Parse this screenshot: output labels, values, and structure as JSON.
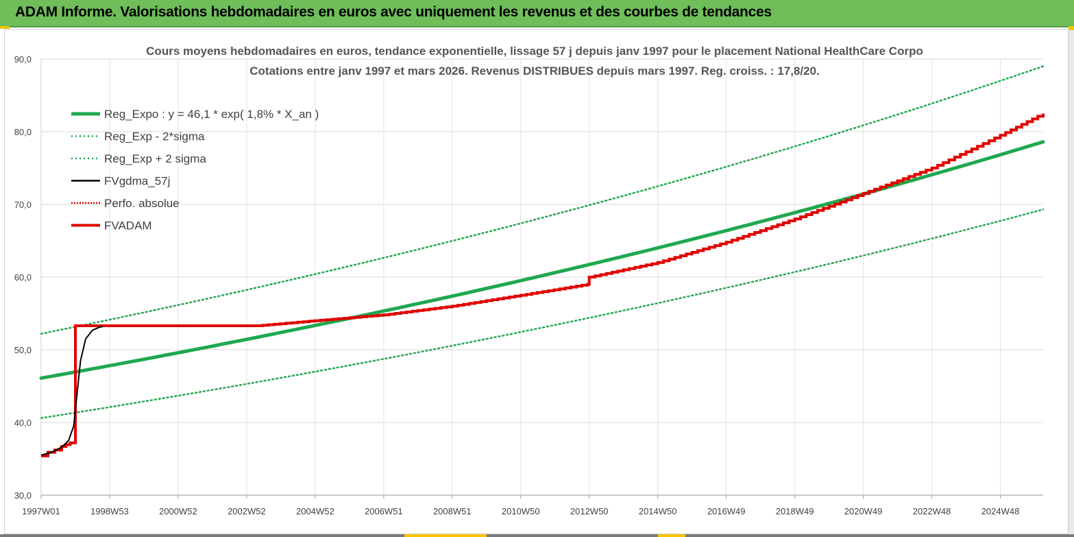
{
  "header": {
    "title": "ADAM Informe. Valorisations hebdomadaires en euros avec uniquement les revenus et des courbes de tendances"
  },
  "colors": {
    "header_bg": "#6fbe5a",
    "trend": "#1fa84f",
    "sigma": "#1fa84f",
    "fvgdma": "#000000",
    "perfo": "#e00000",
    "fvadam": "#e00000"
  },
  "chart_data": {
    "type": "line",
    "title_lines": [
      "Cours moyens hebdomadaires en euros, tendance exponentielle, lissage 57 j depuis janv 1997  pour le placement National HealthCare Corpo",
      "Cotations entre janv 1997 et mars 2026. Revenus DISTRIBUES depuis mars 1997. Reg. croiss. : 17,8/20."
    ],
    "ylim": [
      30,
      90
    ],
    "y_ticks": [
      "30,0",
      "40,0",
      "50,0",
      "60,0",
      "70,0",
      "80,0",
      "90,0"
    ],
    "xlim": [
      1997.0,
      2026.25
    ],
    "x_ticks": [
      {
        "x": 1997.0,
        "label": "1997W01"
      },
      {
        "x": 1999.0,
        "label": "1998W53"
      },
      {
        "x": 2001.0,
        "label": "2000W52"
      },
      {
        "x": 2003.0,
        "label": "2002W52"
      },
      {
        "x": 2005.0,
        "label": "2004W52"
      },
      {
        "x": 2007.0,
        "label": "2006W51"
      },
      {
        "x": 2009.0,
        "label": "2008W51"
      },
      {
        "x": 2011.0,
        "label": "2010W50"
      },
      {
        "x": 2013.0,
        "label": "2012W50"
      },
      {
        "x": 2015.0,
        "label": "2014W50"
      },
      {
        "x": 2017.0,
        "label": "2016W49"
      },
      {
        "x": 2019.0,
        "label": "2018W49"
      },
      {
        "x": 2021.0,
        "label": "2020W49"
      },
      {
        "x": 2023.0,
        "label": "2022W48"
      },
      {
        "x": 2025.0,
        "label": "2024W48"
      }
    ],
    "grid": true,
    "legend_position": "top-left",
    "series": [
      {
        "name": "Reg_Expo : y = 46,1 * exp( 1,8% *  X_an )",
        "style": "solid-thick",
        "color": "#1fa84f",
        "x": [
          1997.0,
          2026.25
        ],
        "y": [
          46.1,
          78.6
        ],
        "model": "exponential"
      },
      {
        "name": "Reg_Exp - 2*sigma",
        "style": "dotted",
        "color": "#1fa84f",
        "x": [
          1997.0,
          2026.25
        ],
        "y": [
          40.6,
          69.3
        ],
        "model": "exponential"
      },
      {
        "name": "Reg_Exp + 2 sigma",
        "style": "dotted",
        "color": "#1fa84f",
        "x": [
          1997.0,
          2026.25
        ],
        "y": [
          52.2,
          89.0
        ],
        "model": "exponential"
      },
      {
        "name": "FVgdma_57j",
        "style": "solid-thin",
        "color": "#000000",
        "x": [
          1997.0,
          1997.3,
          1997.6,
          1997.8,
          1997.95,
          1998.05,
          1998.15,
          1998.3,
          1998.5,
          1998.7,
          1998.8
        ],
        "y": [
          35.5,
          35.9,
          36.6,
          37.5,
          39.5,
          44.0,
          48.5,
          51.5,
          52.7,
          53.1,
          53.2
        ]
      },
      {
        "name": "Perfo. absolue",
        "style": "dotted",
        "color": "#e00000",
        "x": [],
        "y": []
      },
      {
        "name": "FVADAM",
        "style": "step-thick",
        "color": "#e00000",
        "x": [
          1997.0,
          1997.2,
          1997.4,
          1997.6,
          1997.85,
          1998.0,
          1998.0,
          2000.0,
          2003.3,
          2005.0,
          2007.0,
          2009.0,
          2011.0,
          2012.95,
          2013.0,
          2015.0,
          2017.0,
          2019.0,
          2021.0,
          2023.0,
          2025.0,
          2026.25
        ],
        "y": [
          35.4,
          35.9,
          36.2,
          36.7,
          37.2,
          37.6,
          53.3,
          53.3,
          53.3,
          54.0,
          54.8,
          56.0,
          57.5,
          59.0,
          60.0,
          62.0,
          64.8,
          68.0,
          71.5,
          75.0,
          79.5,
          82.5
        ]
      }
    ]
  }
}
